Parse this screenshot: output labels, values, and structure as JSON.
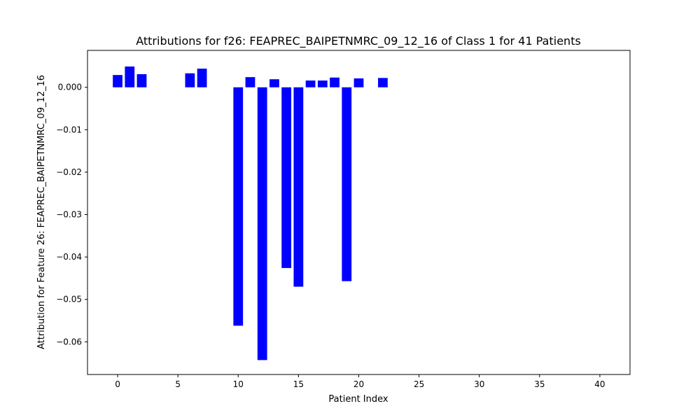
{
  "chart_data": {
    "type": "bar",
    "title": "Attributions for f26: FEAPREC_BAIPETNMRC_09_12_16 of Class 1 for 41 Patients",
    "xlabel": "Patient Index",
    "ylabel": "Attribution for Feature 26: FEAPREC_BAIPETNMRC_09_12_16",
    "xlim": [
      -2.5,
      42.5
    ],
    "ylim": [
      -0.0677,
      0.0087
    ],
    "x_ticks": [
      0,
      5,
      10,
      15,
      20,
      25,
      30,
      35,
      40
    ],
    "x_tick_labels": [
      "0",
      "5",
      "10",
      "15",
      "20",
      "25",
      "30",
      "35",
      "40"
    ],
    "y_ticks": [
      0.0,
      -0.01,
      -0.02,
      -0.03,
      -0.04,
      -0.05,
      -0.06
    ],
    "y_tick_labels": [
      "0.000",
      "−0.01",
      "−0.02",
      "−0.03",
      "−0.04",
      "−0.05",
      "−0.06"
    ],
    "bar_color": "#0000ff",
    "bar_width": 0.8,
    "x": [
      0,
      1,
      2,
      3,
      4,
      5,
      6,
      7,
      8,
      9,
      10,
      11,
      12,
      13,
      14,
      15,
      16,
      17,
      18,
      19,
      20,
      21,
      22,
      23,
      24,
      25,
      26,
      27,
      28,
      29,
      30,
      31,
      32,
      33,
      34,
      35,
      36,
      37,
      38,
      39,
      40
    ],
    "values": [
      0.0029,
      0.0049,
      0.0031,
      0,
      0,
      0,
      0.0033,
      0.0044,
      0,
      0,
      -0.0562,
      0.0024,
      -0.0643,
      0.0019,
      -0.0426,
      -0.047,
      0.0016,
      0.0016,
      0.0023,
      -0.0457,
      0.0021,
      0,
      0.0022,
      0,
      0,
      0,
      0,
      0,
      0,
      0,
      0,
      0,
      0,
      0,
      0,
      0,
      0,
      0,
      0,
      0,
      0
    ],
    "grid": false,
    "legend": "none"
  }
}
